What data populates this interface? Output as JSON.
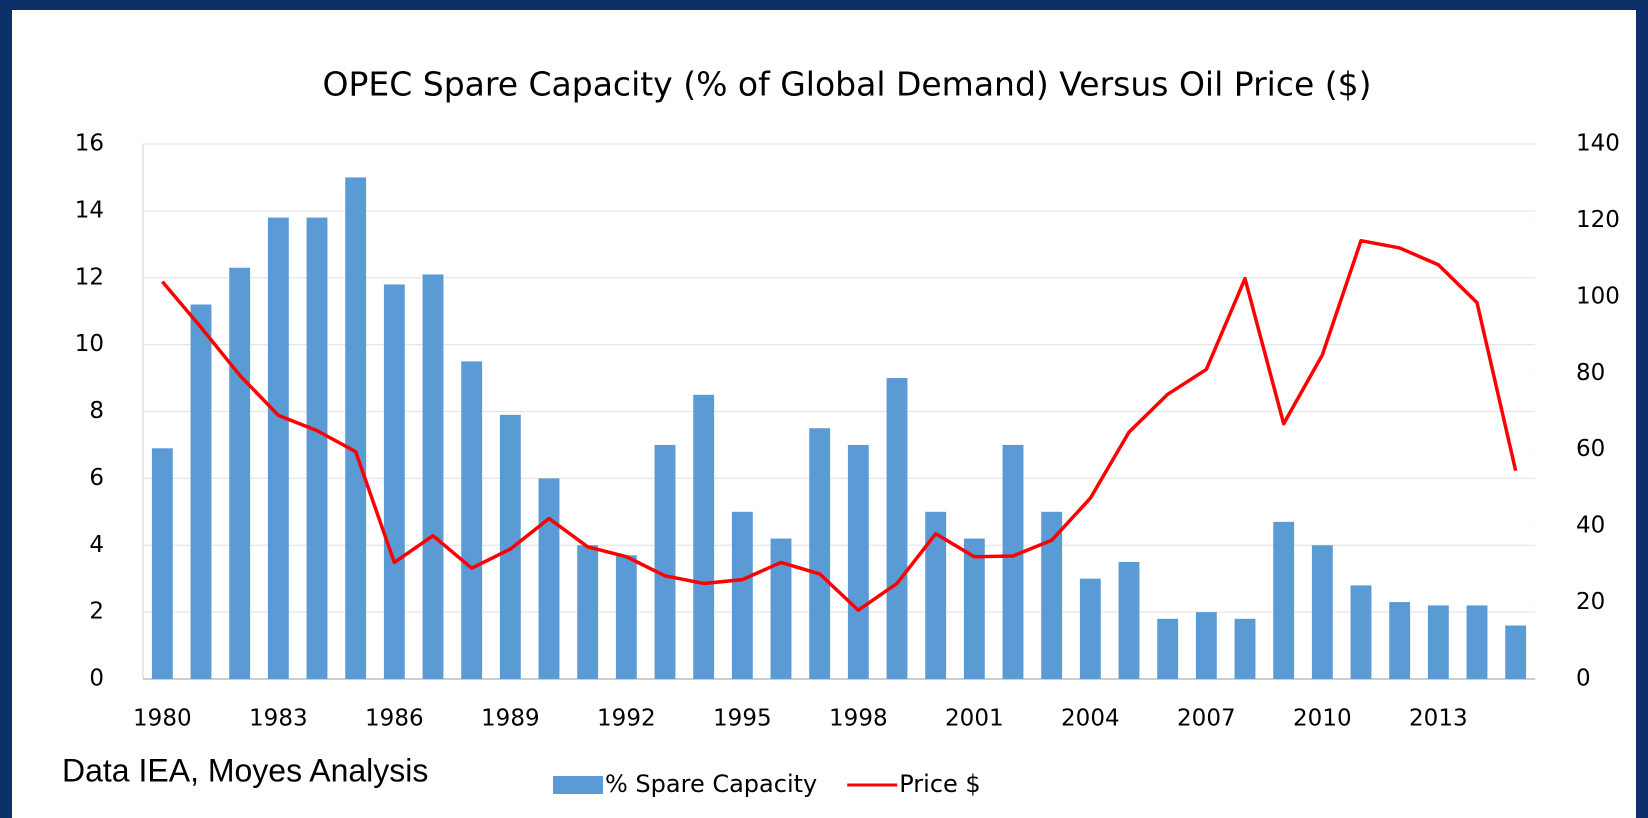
{
  "chart_data": {
    "type": "bar_line",
    "title": "OPEC Spare Capacity (% of Global Demand) Versus Oil Price ($)",
    "source": "Data IEA, Moyes Analysis",
    "categories": [
      "1980",
      null,
      null,
      "1983",
      null,
      null,
      "1986",
      null,
      null,
      "1989",
      null,
      null,
      "1992",
      null,
      null,
      "1995",
      null,
      null,
      "1998",
      null,
      null,
      "2001",
      null,
      null,
      "2004",
      null,
      null,
      "2007",
      null,
      null,
      "2010",
      null,
      null,
      "2013",
      null,
      null
    ],
    "series": [
      {
        "name": "% Spare Capacity",
        "type": "bar",
        "color": "#5b9bd5",
        "axis": "y",
        "values": [
          6.9,
          11.2,
          12.3,
          13.8,
          13.8,
          15.0,
          11.8,
          12.1,
          9.5,
          7.9,
          6.0,
          4.0,
          3.7,
          7.0,
          8.5,
          5.0,
          4.2,
          7.5,
          7.0,
          9.0,
          5.0,
          4.2,
          7.0,
          5.0,
          3.0,
          3.5,
          1.8,
          2.0,
          1.8,
          4.7,
          4.0,
          2.8,
          2.3,
          2.2,
          2.2,
          1.6
        ]
      },
      {
        "name": "Price $",
        "type": "line",
        "color": "#ff0000",
        "axis": "y2",
        "values": [
          104,
          92,
          79.5,
          69,
          65,
          59.5,
          30.5,
          37.5,
          29,
          34,
          42,
          34.6,
          32,
          27,
          25,
          26,
          30.5,
          27.5,
          18,
          25,
          38,
          32,
          32.2,
          36.3,
          47.3,
          64.6,
          74.5,
          81,
          104.8,
          66.8,
          84.8,
          114.7,
          112.8,
          108.4,
          98.5,
          54.5
        ]
      }
    ],
    "ylim": [
      0,
      16
    ],
    "yticks": [
      0,
      2,
      4,
      6,
      8,
      10,
      12,
      14,
      16
    ],
    "y2lim": [
      0,
      140
    ],
    "y2ticks": [
      0,
      20,
      40,
      60,
      80,
      100,
      120,
      140
    ],
    "grid": true,
    "legend": "bottom"
  }
}
